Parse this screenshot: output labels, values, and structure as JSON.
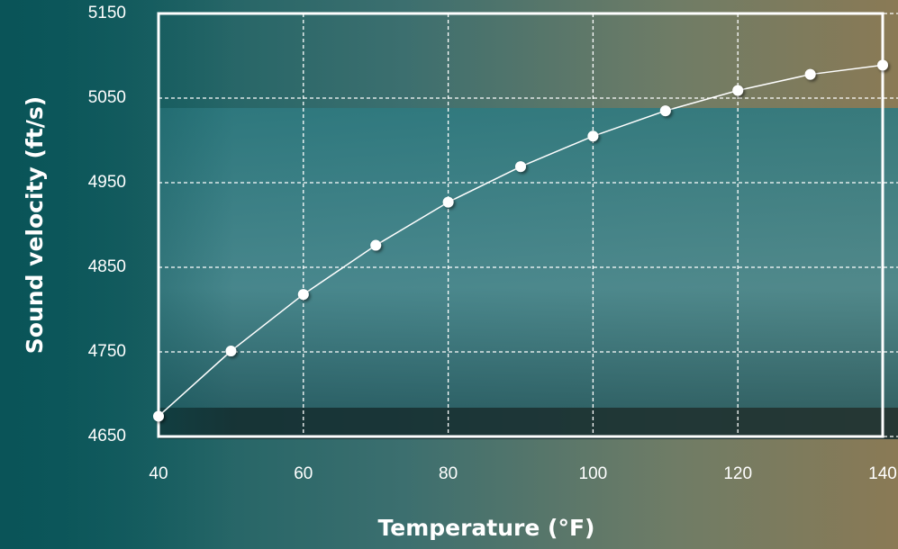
{
  "chart_data": {
    "type": "line",
    "x_label": "Temperature (°F)",
    "y_label": "Sound velocity (ft/s)",
    "x": [
      40,
      50,
      60,
      70,
      80,
      90,
      100,
      110,
      120,
      130,
      140
    ],
    "series": [
      {
        "color": "#ffffff",
        "values": [
          4674,
          4751,
          4818,
          4876,
          4927,
          4969,
          5005,
          5035,
          5059,
          5078,
          5089
        ]
      }
    ],
    "xlim": [
      40,
      140
    ],
    "xticks": [
      40,
      60,
      80,
      100,
      120,
      140
    ],
    "ylim": [
      4650,
      5150
    ],
    "yticks": [
      4650,
      4750,
      4850,
      4950,
      5050,
      5150
    ],
    "grid": true
  }
}
